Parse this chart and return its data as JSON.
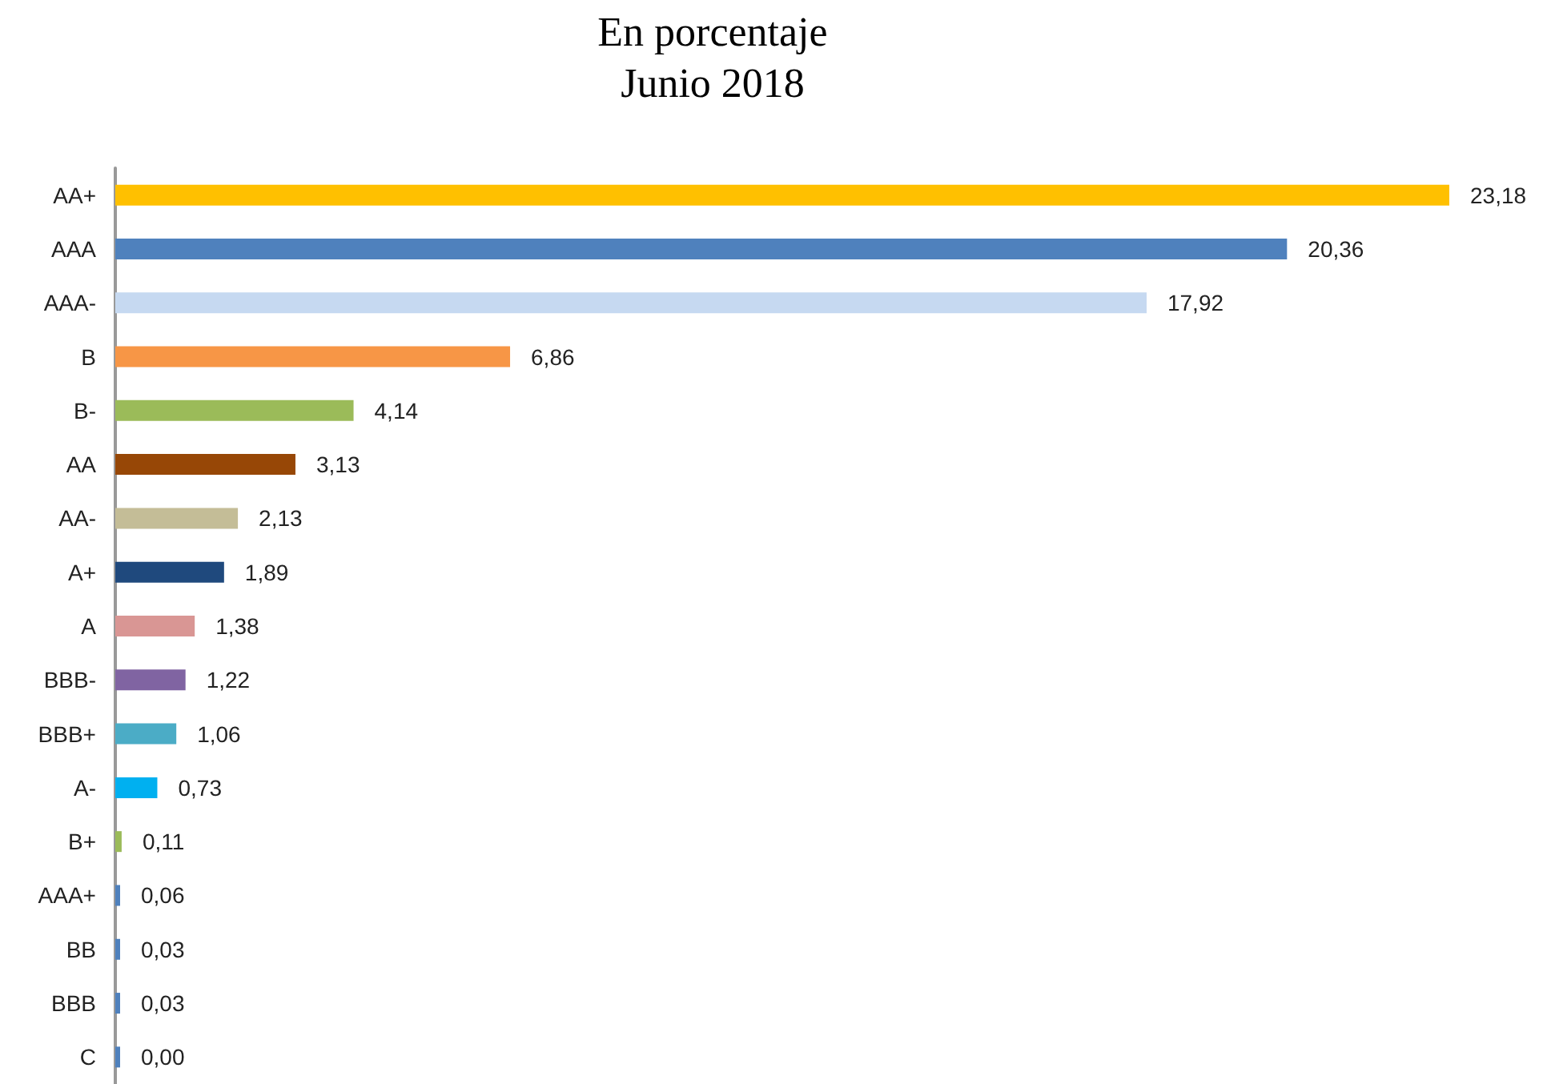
{
  "chart_data": {
    "type": "bar",
    "orientation": "horizontal",
    "title": "En porcentaje",
    "subtitle": "Junio 2018",
    "categories": [
      "AA+",
      "AAA",
      "AAA-",
      "B",
      "B-",
      "AA",
      "AA-",
      "A+",
      "A",
      "BBB-",
      "BBB+",
      "A-",
      "B+",
      "AAA+",
      "BB",
      "BBB",
      "C"
    ],
    "values": [
      23.18,
      20.36,
      17.92,
      6.86,
      4.14,
      3.13,
      2.13,
      1.89,
      1.38,
      1.22,
      1.06,
      0.73,
      0.11,
      0.06,
      0.03,
      0.03,
      0.0
    ],
    "value_labels": [
      "23,18",
      "20,36",
      "17,92",
      "6,86",
      "4,14",
      "3,13",
      "2,13",
      "1,89",
      "1,38",
      "1,22",
      "1,06",
      "0,73",
      "0,11",
      "0,06",
      "0,03",
      "0,03",
      "0,00"
    ],
    "colors": [
      "#ffc000",
      "#4f81bd",
      "#c6d9f1",
      "#f79646",
      "#9bbb59",
      "#974706",
      "#c4bd97",
      "#1f497d",
      "#d99694",
      "#8064a2",
      "#4bacc6",
      "#00b0f0",
      "#9bbb59",
      "#4f81bd",
      "#4f81bd",
      "#4f81bd",
      "#4f81bd"
    ],
    "tick_labels": "y"
  }
}
